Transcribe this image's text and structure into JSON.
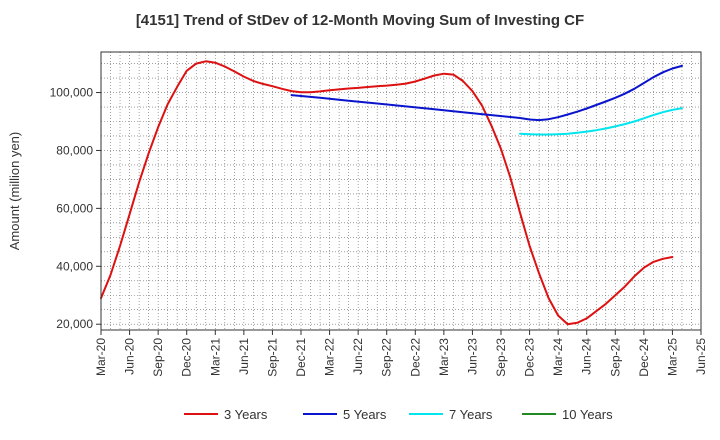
{
  "chart_data": {
    "type": "line",
    "title": "[4151]  Trend of StDev of 12-Month Moving Sum of Investing CF",
    "ylabel": "Amount (million yen)",
    "xlabel": "",
    "ylim": [
      18000,
      114000
    ],
    "yticks": [
      20000,
      40000,
      60000,
      80000,
      100000
    ],
    "ytick_labels": [
      "20,000",
      "40,000",
      "60,000",
      "80,000",
      "100,000"
    ],
    "xlim": [
      "2020-03",
      "2025-06"
    ],
    "xticks": [
      "2020-03",
      "2020-06",
      "2020-09",
      "2020-12",
      "2021-03",
      "2021-06",
      "2021-09",
      "2021-12",
      "2022-03",
      "2022-06",
      "2022-09",
      "2022-12",
      "2023-03",
      "2023-06",
      "2023-09",
      "2023-12",
      "2024-03",
      "2024-06",
      "2024-09",
      "2024-12",
      "2025-03",
      "2025-06"
    ],
    "xtick_labels": [
      "Mar-20",
      "Jun-20",
      "Sep-20",
      "Dec-20",
      "Mar-21",
      "Jun-21",
      "Sep-21",
      "Dec-21",
      "Mar-22",
      "Jun-22",
      "Sep-22",
      "Dec-22",
      "Mar-23",
      "Jun-23",
      "Sep-23",
      "Dec-23",
      "Mar-24",
      "Jun-24",
      "Sep-24",
      "Dec-24",
      "Mar-25",
      "Jun-25"
    ],
    "grid": true,
    "legend_position": "bottom",
    "series": [
      {
        "name": "3 Years",
        "color": "#dd1111",
        "points": [
          [
            "2020-03",
            29000
          ],
          [
            "2020-04",
            37000
          ],
          [
            "2020-05",
            47000
          ],
          [
            "2020-06",
            58000
          ],
          [
            "2020-07",
            69000
          ],
          [
            "2020-08",
            79000
          ],
          [
            "2020-09",
            88000
          ],
          [
            "2020-10",
            96000
          ],
          [
            "2020-11",
            102000
          ],
          [
            "2020-12",
            107500
          ],
          [
            "2021-01",
            110000
          ],
          [
            "2021-02",
            110800
          ],
          [
            "2021-03",
            110300
          ],
          [
            "2021-04",
            109000
          ],
          [
            "2021-05",
            107300
          ],
          [
            "2021-06",
            105500
          ],
          [
            "2021-07",
            104000
          ],
          [
            "2021-08",
            103000
          ],
          [
            "2021-09",
            102200
          ],
          [
            "2021-10",
            101300
          ],
          [
            "2021-11",
            100500
          ],
          [
            "2021-12",
            100100
          ],
          [
            "2022-01",
            100100
          ],
          [
            "2022-02",
            100400
          ],
          [
            "2022-03",
            100800
          ],
          [
            "2022-04",
            101100
          ],
          [
            "2022-05",
            101400
          ],
          [
            "2022-06",
            101600
          ],
          [
            "2022-07",
            101900
          ],
          [
            "2022-08",
            102200
          ],
          [
            "2022-09",
            102400
          ],
          [
            "2022-10",
            102700
          ],
          [
            "2022-11",
            103100
          ],
          [
            "2022-12",
            103800
          ],
          [
            "2023-01",
            104800
          ],
          [
            "2023-02",
            105900
          ],
          [
            "2023-03",
            106500
          ],
          [
            "2023-04",
            106200
          ],
          [
            "2023-05",
            104000
          ],
          [
            "2023-06",
            100500
          ],
          [
            "2023-07",
            95500
          ],
          [
            "2023-08",
            88500
          ],
          [
            "2023-09",
            80500
          ],
          [
            "2023-10",
            70500
          ],
          [
            "2023-11",
            58500
          ],
          [
            "2023-12",
            47000
          ],
          [
            "2024-01",
            37500
          ],
          [
            "2024-02",
            29000
          ],
          [
            "2024-03",
            23000
          ],
          [
            "2024-04",
            20000
          ],
          [
            "2024-05",
            20500
          ],
          [
            "2024-06",
            22000
          ],
          [
            "2024-07",
            24500
          ],
          [
            "2024-08",
            27000
          ],
          [
            "2024-09",
            30000
          ],
          [
            "2024-10",
            33000
          ],
          [
            "2024-11",
            36500
          ],
          [
            "2024-12",
            39500
          ],
          [
            "2025-01",
            41500
          ],
          [
            "2025-02",
            42600
          ],
          [
            "2025-03",
            43200
          ]
        ]
      },
      {
        "name": "5 Years",
        "color": "#0a14cc",
        "points": [
          [
            "2021-11",
            99100
          ],
          [
            "2022-02",
            98200
          ],
          [
            "2022-05",
            97200
          ],
          [
            "2022-08",
            96200
          ],
          [
            "2022-11",
            95200
          ],
          [
            "2023-02",
            94200
          ],
          [
            "2023-05",
            93200
          ],
          [
            "2023-08",
            92200
          ],
          [
            "2023-11",
            91200
          ],
          [
            "2023-12",
            90700
          ],
          [
            "2024-01",
            90500
          ],
          [
            "2024-02",
            90800
          ],
          [
            "2024-03",
            91500
          ],
          [
            "2024-04",
            92400
          ],
          [
            "2024-05",
            93400
          ],
          [
            "2024-06",
            94500
          ],
          [
            "2024-07",
            95700
          ],
          [
            "2024-08",
            96900
          ],
          [
            "2024-09",
            98200
          ],
          [
            "2024-10",
            99600
          ],
          [
            "2024-11",
            101300
          ],
          [
            "2024-12",
            103300
          ],
          [
            "2025-01",
            105300
          ],
          [
            "2025-02",
            107000
          ],
          [
            "2025-03",
            108300
          ],
          [
            "2025-04",
            109200
          ]
        ]
      },
      {
        "name": "7 Years",
        "color": "#00e5ee",
        "points": [
          [
            "2023-11",
            85800
          ],
          [
            "2023-12",
            85600
          ],
          [
            "2024-01",
            85500
          ],
          [
            "2024-02",
            85500
          ],
          [
            "2024-03",
            85600
          ],
          [
            "2024-04",
            85800
          ],
          [
            "2024-05",
            86100
          ],
          [
            "2024-06",
            86500
          ],
          [
            "2024-07",
            87000
          ],
          [
            "2024-08",
            87600
          ],
          [
            "2024-09",
            88300
          ],
          [
            "2024-10",
            89100
          ],
          [
            "2024-11",
            90000
          ],
          [
            "2024-12",
            91100
          ],
          [
            "2025-01",
            92200
          ],
          [
            "2025-02",
            93200
          ],
          [
            "2025-03",
            94000
          ],
          [
            "2025-04",
            94600
          ]
        ]
      },
      {
        "name": "10 Years",
        "color": "#228822",
        "points": []
      }
    ]
  }
}
